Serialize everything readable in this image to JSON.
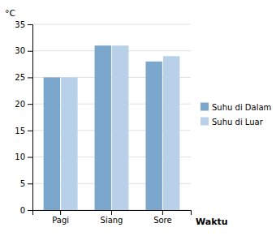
{
  "chart_data": {
    "type": "bar",
    "categories": [
      "Pagi",
      "Siang",
      "Sore"
    ],
    "series": [
      {
        "name": "Suhu di Dalam",
        "color": "#7BA7CC",
        "values": [
          25.0,
          31.0,
          28.0
        ]
      },
      {
        "name": "Suhu di Luar",
        "color": "#B8D0E8",
        "values": [
          25.0,
          31.0,
          29.0
        ]
      }
    ],
    "y_label": "°C",
    "x_label": "Waktu",
    "ylim": [
      0,
      35
    ],
    "yticks": [
      0,
      5,
      10,
      15,
      20,
      25,
      30,
      35
    ],
    "grid": true,
    "legend": "right"
  }
}
